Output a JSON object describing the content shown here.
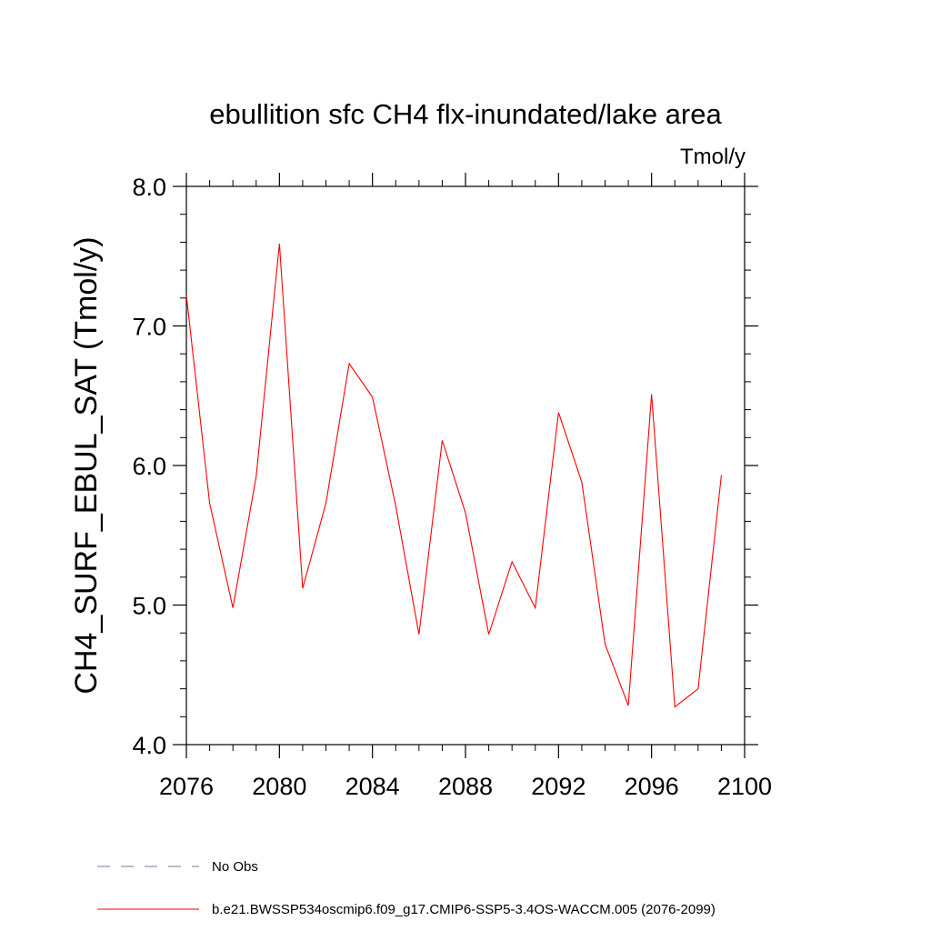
{
  "chart_data": {
    "type": "line",
    "title": "ebullition sfc CH4 flx-inundated/lake area",
    "units_label": "Tmol/y",
    "xlabel": "",
    "ylabel": "CH4_SURF_EBUL_SAT  (Tmol/y)",
    "xlim": [
      2076,
      2100
    ],
    "ylim": [
      4.0,
      8.0
    ],
    "x_ticks": [
      2076,
      2080,
      2084,
      2088,
      2092,
      2096,
      2100
    ],
    "x_tick_labels": [
      "2076",
      "2080",
      "2084",
      "2088",
      "2092",
      "2096",
      "2100"
    ],
    "y_ticks": [
      4.0,
      5.0,
      6.0,
      7.0,
      8.0
    ],
    "y_tick_labels": [
      "4.0",
      "5.0",
      "6.0",
      "7.0",
      "8.0"
    ],
    "grid": false,
    "legend_position": "bottom-left",
    "series": [
      {
        "name": "b.e21.BWSSP534oscmip6.f09_g17.CMIP6-SSP5-3.4OS-WACCM.005 (2076-2099)",
        "color": "#ff0000",
        "style": "solid",
        "x": [
          2076,
          2077,
          2078,
          2079,
          2080,
          2081,
          2082,
          2083,
          2084,
          2085,
          2086,
          2087,
          2088,
          2089,
          2090,
          2091,
          2092,
          2093,
          2094,
          2095,
          2096,
          2097,
          2098,
          2099
        ],
        "values": [
          7.22,
          5.73,
          4.98,
          5.92,
          7.59,
          5.12,
          5.73,
          6.73,
          6.49,
          5.71,
          4.79,
          6.18,
          5.66,
          4.79,
          5.31,
          4.98,
          6.38,
          5.88,
          4.72,
          4.28,
          6.51,
          4.27,
          4.4,
          5.93
        ]
      },
      {
        "name": "No Obs",
        "color": "#7b6fb5",
        "style": "dashed",
        "x": [],
        "values": []
      }
    ]
  }
}
